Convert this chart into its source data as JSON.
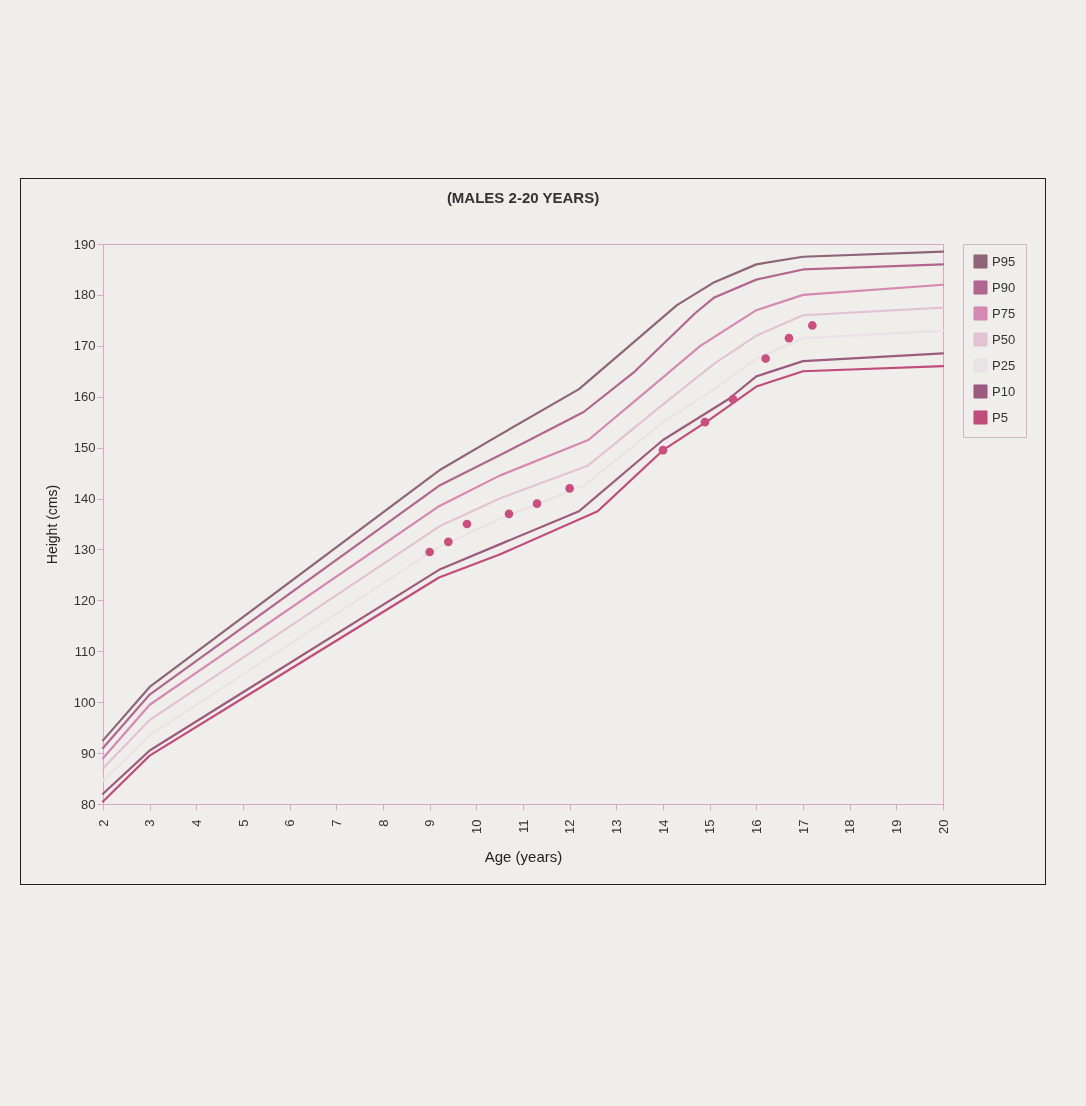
{
  "chart_data": {
    "type": "line",
    "title": "(MALES 2-20 YEARS)",
    "xlabel": "Age (years)",
    "ylabel": "Height (cms)",
    "xlim": [
      2,
      20
    ],
    "ylim": [
      80,
      190
    ],
    "xticks": [
      2,
      3,
      4,
      5,
      6,
      7,
      8,
      9,
      10,
      11,
      12,
      13,
      14,
      15,
      16,
      17,
      18,
      19,
      20
    ],
    "yticks": [
      80,
      90,
      100,
      110,
      120,
      130,
      140,
      150,
      160,
      170,
      180,
      190
    ],
    "grid": false,
    "legend": "top right",
    "series": [
      {
        "name": "P95",
        "color": "#8e6478",
        "x": [
          2,
          3,
          9.2,
          10.5,
          12.2,
          14.3,
          15.1,
          16,
          17,
          20
        ],
        "values": [
          92.5,
          103,
          145.5,
          152.5,
          161.5,
          178,
          182.5,
          186,
          187.5,
          188.5
        ]
      },
      {
        "name": "P90",
        "color": "#b0668f",
        "x": [
          2,
          3,
          9.2,
          10.5,
          12.3,
          13.4,
          14.7,
          15.1,
          16,
          17,
          20
        ],
        "values": [
          91,
          101.5,
          142.5,
          148.5,
          157,
          165,
          176.5,
          179.5,
          183,
          185,
          186
        ]
      },
      {
        "name": "P75",
        "color": "#d488b2",
        "x": [
          2,
          3,
          9.2,
          10.5,
          12.4,
          13.7,
          14.8,
          16,
          17,
          20
        ],
        "values": [
          89,
          99.5,
          138.5,
          144.5,
          151.5,
          161.5,
          170,
          177,
          180,
          182
        ]
      },
      {
        "name": "P50",
        "color": "#e3c3d3",
        "x": [
          2,
          3,
          9.2,
          10.5,
          12.4,
          14,
          15.1,
          16,
          17,
          20
        ],
        "values": [
          87,
          96.5,
          134.5,
          140,
          146.5,
          158.5,
          166.5,
          172,
          176,
          177.5
        ]
      },
      {
        "name": "P25",
        "color": "#e9e3e5",
        "x": [
          2,
          3,
          9.2,
          10.5,
          12.3,
          14,
          15.1,
          16,
          17,
          20
        ],
        "values": [
          84.5,
          93.5,
          130.5,
          136,
          142.5,
          155,
          161.5,
          167.5,
          171.5,
          173
        ]
      },
      {
        "name": "P10",
        "color": "#9c5a7e",
        "x": [
          2,
          3,
          9.2,
          10.5,
          12.2,
          14,
          15.4,
          16,
          17,
          20
        ],
        "values": [
          82,
          90.5,
          126,
          131,
          137.5,
          151.5,
          159.5,
          164,
          167,
          168.5
        ]
      },
      {
        "name": "P5",
        "color": "#c04c7c",
        "x": [
          2,
          3,
          9.2,
          10.5,
          12.6,
          14,
          15,
          16,
          17,
          20
        ],
        "values": [
          80.5,
          89.5,
          124.5,
          129,
          137.5,
          149.5,
          155.5,
          162,
          165,
          166
        ]
      },
      {
        "type": "scatter",
        "marker": "circle",
        "color": "#c94f7f",
        "x": [
          9,
          9.4,
          9.8,
          10.7,
          11.3,
          12,
          14,
          14.9,
          15.5,
          16.2,
          16.7,
          17.2
        ],
        "values": [
          129.5,
          131.5,
          135,
          137,
          139,
          142,
          149.5,
          155,
          159.5,
          167.5,
          171.5,
          174
        ]
      }
    ]
  }
}
